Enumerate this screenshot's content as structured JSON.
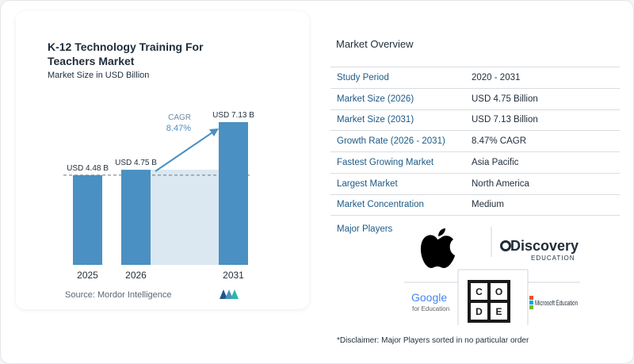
{
  "title": "K-12 Technology Training For Teachers Market",
  "subtitle": "Market Size in USD Billion",
  "source": "Source: Mordor Intelligence",
  "chart_data": {
    "type": "bar",
    "title": "K-12 Technology Training For Teachers Market",
    "subtitle": "Market Size in USD Billion",
    "categories": [
      "2025",
      "2026",
      "2031"
    ],
    "values": [
      4.48,
      4.75,
      7.13
    ],
    "data_labels": [
      "USD 4.48 B",
      "USD 4.75 B",
      "USD 7.13 B"
    ],
    "cagr_label": "CAGR",
    "cagr_value": "8.47%",
    "xlabel": "",
    "ylabel": "",
    "ylim": [
      0,
      7.13
    ],
    "bar_color": "#4a90c2",
    "highlight_color": "#dbe8f2",
    "grid": false
  },
  "overview": {
    "title": "Market Overview",
    "rows": [
      {
        "label": "Study Period",
        "value": "2020 - 2031"
      },
      {
        "label": "Market Size (2026)",
        "value": "USD 4.75 Billion"
      },
      {
        "label": "Market Size (2031)",
        "value": "USD 7.13 Billion"
      },
      {
        "label": "Growth Rate (2026 - 2031)",
        "value": "8.47% CAGR"
      },
      {
        "label": "Fastest Growing Market",
        "value": "Asia Pacific"
      },
      {
        "label": "Largest Market",
        "value": "North America"
      },
      {
        "label": "Market Concentration",
        "value": "Medium"
      }
    ]
  },
  "players": {
    "title": "Major Players",
    "google_line1": "Google",
    "google_line2": "for Education",
    "discovery_line1": "Discovery",
    "discovery_line2": "EDUCATION",
    "code_letters": [
      "C",
      "O",
      "D",
      "E"
    ],
    "microsoft": "Microsoft Education"
  },
  "disclaimer": "*Disclaimer: Major Players sorted in no particular order",
  "colors": {
    "label_blue": "#1d5a86",
    "bar": "#4a90c2",
    "band": "#dbe8f2",
    "arrow": "#4a90c2"
  }
}
